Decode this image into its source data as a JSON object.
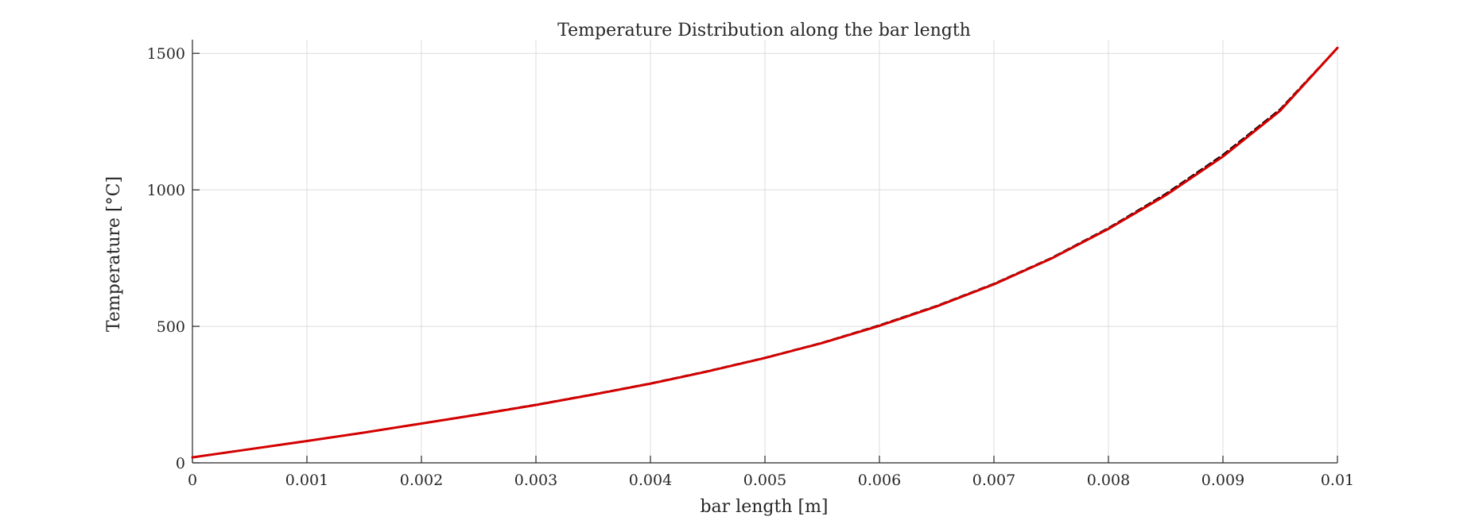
{
  "chart_data": {
    "type": "line",
    "title": "Temperature Distribution along the bar length",
    "xlabel": "bar length [m]",
    "ylabel": "Temperature [°C]",
    "xlim": [
      0,
      0.01
    ],
    "ylim": [
      0,
      1550
    ],
    "grid": true,
    "x_ticks": [
      {
        "value": 0,
        "label": "0"
      },
      {
        "value": 0.001,
        "label": "0.001"
      },
      {
        "value": 0.002,
        "label": "0.002"
      },
      {
        "value": 0.003,
        "label": "0.003"
      },
      {
        "value": 0.004,
        "label": "0.004"
      },
      {
        "value": 0.005,
        "label": "0.005"
      },
      {
        "value": 0.006,
        "label": "0.006"
      },
      {
        "value": 0.007,
        "label": "0.007"
      },
      {
        "value": 0.008,
        "label": "0.008"
      },
      {
        "value": 0.009,
        "label": "0.009"
      },
      {
        "value": 0.01,
        "label": "0.01"
      }
    ],
    "y_ticks": [
      {
        "value": 0,
        "label": "0"
      },
      {
        "value": 500,
        "label": "500"
      },
      {
        "value": 1000,
        "label": "1000"
      },
      {
        "value": 1500,
        "label": "1500"
      }
    ],
    "series": [
      {
        "color": "#000000",
        "style": "dashed",
        "x": [
          0,
          0.0005,
          0.001,
          0.0015,
          0.002,
          0.0025,
          0.003,
          0.0035,
          0.004,
          0.0045,
          0.005,
          0.0055,
          0.006,
          0.0065,
          0.007,
          0.0075,
          0.008,
          0.0085,
          0.009,
          0.0095,
          0.01
        ],
        "values": [
          20,
          50,
          80,
          111,
          144,
          178,
          213,
          251,
          291,
          336,
          385,
          440,
          504,
          575,
          656,
          750,
          860,
          985,
          1128,
          1295,
          1520
        ]
      },
      {
        "color": "#d40000",
        "style": "solid",
        "x": [
          0,
          0.0005,
          0.001,
          0.0015,
          0.002,
          0.0025,
          0.003,
          0.0035,
          0.004,
          0.0045,
          0.005,
          0.0055,
          0.006,
          0.0065,
          0.007,
          0.0075,
          0.008,
          0.0085,
          0.009,
          0.0095,
          0.01
        ],
        "values": [
          20,
          50,
          80,
          111,
          144,
          177,
          212,
          250,
          290,
          335,
          384,
          439,
          502,
          573,
          654,
          748,
          857,
          980,
          1122,
          1290,
          1520
        ]
      }
    ]
  }
}
